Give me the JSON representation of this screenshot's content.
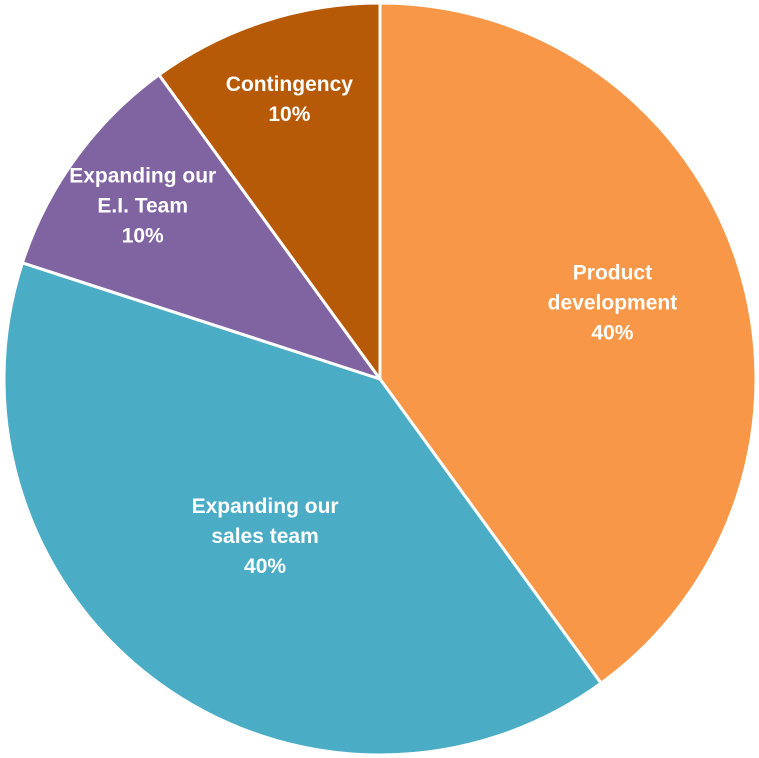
{
  "chart_data": {
    "type": "pie",
    "title": "",
    "start_angle_deg": 0,
    "direction": "clockwise",
    "slices": [
      {
        "lines": [
          "Product",
          "development"
        ],
        "percent_label": "40%",
        "value": 40,
        "color": "#F79747"
      },
      {
        "lines": [
          "Expanding our",
          "sales team"
        ],
        "percent_label": "40%",
        "value": 40,
        "color": "#4BACC6"
      },
      {
        "lines": [
          "Expanding our",
          "E.I. Team"
        ],
        "percent_label": "10%",
        "value": 10,
        "color": "#8064A2"
      },
      {
        "lines": [
          "Contingency"
        ],
        "percent_label": "10%",
        "value": 10,
        "color": "#B75A07"
      }
    ],
    "slice_border_color": "#FFFFFF",
    "legend": "none"
  }
}
